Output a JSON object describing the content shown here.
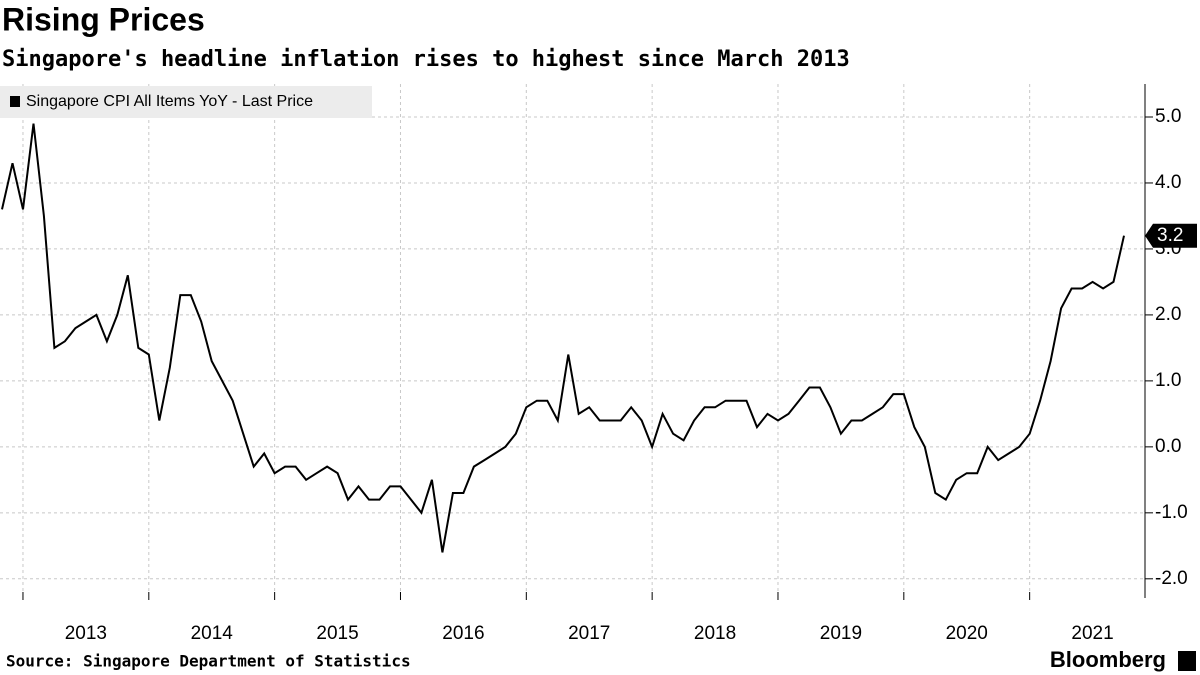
{
  "chart_data": {
    "type": "line",
    "title": "Rising Prices",
    "subtitle": "Singapore's headline inflation rises to highest since March 2013",
    "source": "Source: Singapore Department of Statistics",
    "brand": "Bloomberg",
    "x": [
      "2012-11",
      "2012-12",
      "2013-01",
      "2013-02",
      "2013-03",
      "2013-04",
      "2013-05",
      "2013-06",
      "2013-07",
      "2013-08",
      "2013-09",
      "2013-10",
      "2013-11",
      "2013-12",
      "2014-01",
      "2014-02",
      "2014-03",
      "2014-04",
      "2014-05",
      "2014-06",
      "2014-07",
      "2014-08",
      "2014-09",
      "2014-10",
      "2014-11",
      "2014-12",
      "2015-01",
      "2015-02",
      "2015-03",
      "2015-04",
      "2015-05",
      "2015-06",
      "2015-07",
      "2015-08",
      "2015-09",
      "2015-10",
      "2015-11",
      "2015-12",
      "2016-01",
      "2016-02",
      "2016-03",
      "2016-04",
      "2016-05",
      "2016-06",
      "2016-07",
      "2016-08",
      "2016-09",
      "2016-10",
      "2016-11",
      "2016-12",
      "2017-01",
      "2017-02",
      "2017-03",
      "2017-04",
      "2017-05",
      "2017-06",
      "2017-07",
      "2017-08",
      "2017-09",
      "2017-10",
      "2017-11",
      "2017-12",
      "2018-01",
      "2018-02",
      "2018-03",
      "2018-04",
      "2018-05",
      "2018-06",
      "2018-07",
      "2018-08",
      "2018-09",
      "2018-10",
      "2018-11",
      "2018-12",
      "2019-01",
      "2019-02",
      "2019-03",
      "2019-04",
      "2019-05",
      "2019-06",
      "2019-07",
      "2019-08",
      "2019-09",
      "2019-10",
      "2019-11",
      "2019-12",
      "2020-01",
      "2020-02",
      "2020-03",
      "2020-04",
      "2020-05",
      "2020-06",
      "2020-07",
      "2020-08",
      "2020-09",
      "2020-10",
      "2020-11",
      "2020-12",
      "2021-01",
      "2021-02",
      "2021-03",
      "2021-04",
      "2021-05",
      "2021-06",
      "2021-07",
      "2021-08",
      "2021-09",
      "2021-10"
    ],
    "series": [
      {
        "name": "Singapore CPI All Items YoY - Last Price",
        "color": "#000000",
        "values": [
          3.6,
          4.3,
          3.6,
          4.9,
          3.5,
          1.5,
          1.6,
          1.8,
          1.9,
          2.0,
          1.6,
          2.0,
          2.6,
          1.5,
          1.4,
          0.4,
          1.2,
          2.3,
          2.3,
          1.9,
          1.3,
          1.0,
          0.7,
          0.2,
          -0.3,
          -0.1,
          -0.4,
          -0.3,
          -0.3,
          -0.5,
          -0.4,
          -0.3,
          -0.4,
          -0.8,
          -0.6,
          -0.8,
          -0.8,
          -0.6,
          -0.6,
          -0.8,
          -1.0,
          -0.5,
          -1.6,
          -0.7,
          -0.7,
          -0.3,
          -0.2,
          -0.1,
          0.0,
          0.2,
          0.6,
          0.7,
          0.7,
          0.4,
          1.4,
          0.5,
          0.6,
          0.4,
          0.4,
          0.4,
          0.6,
          0.4,
          0.0,
          0.5,
          0.2,
          0.1,
          0.4,
          0.6,
          0.6,
          0.7,
          0.7,
          0.7,
          0.3,
          0.5,
          0.4,
          0.5,
          0.7,
          0.9,
          0.9,
          0.6,
          0.2,
          0.4,
          0.4,
          0.5,
          0.6,
          0.8,
          0.8,
          0.3,
          0.0,
          -0.7,
          -0.8,
          -0.5,
          -0.4,
          -0.4,
          0.0,
          -0.2,
          -0.1,
          0.0,
          0.2,
          0.7,
          1.3,
          2.1,
          2.4,
          2.4,
          2.5,
          2.4,
          2.5,
          3.2
        ]
      }
    ],
    "xlim": [
      "2012-11",
      "2021-12"
    ],
    "xticks": [
      2013,
      2014,
      2015,
      2016,
      2017,
      2018,
      2019,
      2020,
      2021
    ],
    "ylim": [
      -2.2,
      5.5
    ],
    "yticks": [
      {
        "value": -2,
        "label": "-2.0"
      },
      {
        "value": -1,
        "label": "-1.0"
      },
      {
        "value": 0,
        "label": "0.0"
      },
      {
        "value": 1,
        "label": "1.0"
      },
      {
        "value": 2,
        "label": "2.0"
      },
      {
        "value": 3,
        "label": "3.0"
      },
      {
        "value": 4,
        "label": "4.0"
      },
      {
        "value": 5,
        "label": "5.0"
      }
    ],
    "grid": true,
    "legend": "top-left"
  }
}
